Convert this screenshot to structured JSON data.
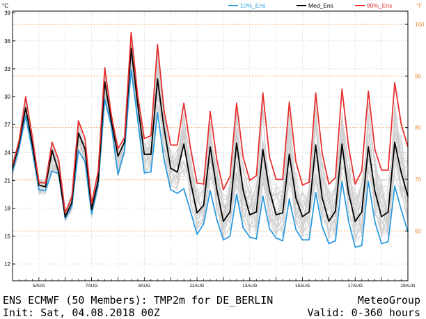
{
  "chart_data": {
    "type": "line",
    "y_unit_left": "°C",
    "y_unit_right": "°F",
    "ylim": [
      10.2,
      39.2
    ],
    "yticks_left": [
      12,
      15,
      18,
      21,
      24,
      27,
      30,
      33,
      36,
      39
    ],
    "yticks_right": [
      60,
      70,
      80,
      90,
      100
    ],
    "xlim_hours": [
      0,
      360
    ],
    "xtick_labels": [
      "5AUG",
      "7AUG",
      "9AUG",
      "11AUG",
      "13AUG",
      "15AUG",
      "17AUG",
      "19AUG"
    ],
    "grid": true,
    "legend_position": "top",
    "x_hours": [
      0,
      6,
      12,
      18,
      24,
      30,
      36,
      42,
      48,
      54,
      60,
      66,
      72,
      78,
      84,
      90,
      96,
      102,
      108,
      114,
      120,
      126,
      132,
      138,
      144,
      150,
      156,
      162,
      168,
      174,
      180,
      186,
      192,
      198,
      204,
      210,
      216,
      222,
      228,
      234,
      240,
      246,
      252,
      258,
      264,
      270,
      276,
      282,
      288,
      294,
      300,
      306,
      312,
      318,
      324,
      330,
      336,
      342,
      348,
      354,
      360
    ],
    "series": [
      {
        "name": "10%_Ens",
        "color": "#2b9be0",
        "values": [
          22.0,
          24.5,
          27.9,
          24.2,
          20.0,
          19.9,
          22.0,
          21.7,
          16.9,
          18.2,
          24.2,
          23.0,
          17.4,
          20.5,
          29.7,
          26.8,
          21.6,
          24.2,
          32.9,
          27.5,
          21.8,
          21.9,
          28.3,
          23.2,
          20.0,
          19.6,
          20.1,
          17.7,
          15.2,
          16.3,
          19.9,
          16.8,
          14.6,
          15.0,
          19.5,
          15.9,
          14.9,
          14.7,
          19.3,
          15.8,
          14.8,
          14.5,
          19.0,
          15.7,
          14.6,
          14.6,
          19.7,
          16.0,
          14.2,
          14.5,
          20.9,
          16.6,
          13.8,
          14.0,
          20.9,
          16.5,
          14.2,
          14.4,
          20.4,
          17.8,
          15.5
        ]
      },
      {
        "name": "Med_Ens",
        "color": "#000000",
        "values": [
          22.3,
          25.0,
          28.8,
          24.9,
          20.5,
          20.3,
          24.2,
          21.9,
          17.1,
          18.6,
          26.1,
          24.4,
          17.9,
          21.0,
          31.6,
          27.3,
          23.6,
          25.1,
          35.2,
          29.1,
          23.8,
          23.8,
          31.9,
          26.6,
          22.3,
          21.9,
          24.9,
          20.9,
          17.5,
          18.3,
          24.6,
          20.0,
          16.6,
          17.6,
          25.0,
          19.9,
          17.3,
          17.6,
          24.3,
          19.9,
          17.3,
          17.5,
          23.8,
          19.1,
          17.1,
          17.6,
          24.8,
          19.1,
          16.6,
          17.7,
          24.9,
          19.6,
          16.6,
          17.6,
          24.6,
          19.8,
          17.1,
          17.6,
          25.1,
          21.8,
          19.3
        ]
      },
      {
        "name": "90%_Ens",
        "color": "#e83030",
        "values": [
          22.6,
          25.3,
          30.0,
          25.7,
          20.8,
          20.7,
          25.1,
          23.2,
          17.5,
          19.2,
          27.4,
          25.5,
          18.5,
          22.0,
          33.1,
          28.0,
          24.4,
          25.6,
          36.9,
          30.1,
          25.5,
          25.8,
          35.6,
          28.5,
          24.8,
          24.8,
          29.3,
          24.5,
          20.7,
          20.6,
          28.4,
          23.2,
          20.0,
          21.4,
          29.3,
          23.5,
          21.0,
          21.5,
          30.4,
          23.5,
          21.1,
          21.1,
          29.4,
          23.0,
          20.5,
          20.8,
          30.4,
          23.9,
          20.6,
          21.3,
          30.8,
          24.6,
          20.6,
          22.0,
          30.6,
          24.3,
          22.1,
          22.1,
          31.5,
          27.0,
          24.6
        ]
      }
    ]
  },
  "captions": {
    "line1_left": "ENS ECMWF (50 Members): TMP2m for DE_BERLIN",
    "line2_left": "Init: Sat, 04.08.2018 00Z",
    "line1_right": "MeteoGroup",
    "line2_right": "Valid: 0-360 hours"
  }
}
